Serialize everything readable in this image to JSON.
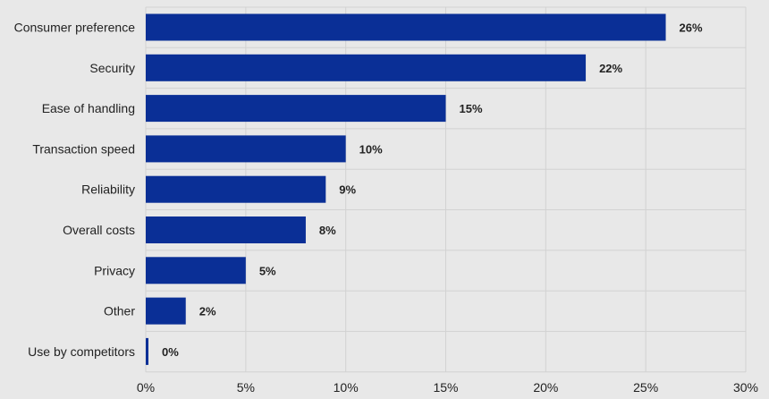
{
  "chart_data": {
    "type": "bar",
    "orientation": "horizontal",
    "categories": [
      "Consumer preference",
      "Security",
      "Ease of handling",
      "Transaction speed",
      "Reliability",
      "Overall costs",
      "Privacy",
      "Other",
      "Use by competitors"
    ],
    "values": [
      26,
      22,
      15,
      10,
      9,
      8,
      5,
      2,
      0
    ],
    "value_labels": [
      "26%",
      "22%",
      "15%",
      "10%",
      "9%",
      "8%",
      "5%",
      "2%",
      "0%"
    ],
    "x_ticks": [
      0,
      5,
      10,
      15,
      20,
      25,
      30
    ],
    "x_tick_labels": [
      "0%",
      "5%",
      "10%",
      "15%",
      "20%",
      "25%",
      "30%"
    ],
    "xlim": [
      0,
      30
    ],
    "grid": true,
    "title": "",
    "xlabel": "",
    "ylabel": "",
    "bar_color": "#0a2f96",
    "background_color": "#e8e8e8"
  }
}
